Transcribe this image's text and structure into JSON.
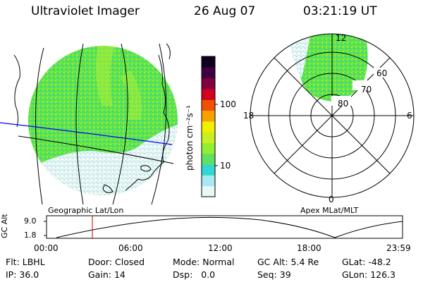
{
  "header": {
    "instrument": "Ultraviolet Imager",
    "date": "26 Aug 07",
    "time": "03:21:19 UT"
  },
  "left_panel": {
    "caption": "Geographic Lat/Lon"
  },
  "colorbar": {
    "unit_label": "photon cm⁻²s⁻¹",
    "ticks": [
      "100",
      "10"
    ],
    "colors": [
      "#e8f8f8",
      "#a8e8f0",
      "#30d8d0",
      "#60e060",
      "#90f030",
      "#c8f020",
      "#f0f000",
      "#f8a000",
      "#f05000",
      "#d00020",
      "#800040",
      "#400040",
      "#100020"
    ]
  },
  "right_panel": {
    "caption": "Apex MLat/MLT",
    "mlt_labels": {
      "top": "12",
      "left": "18",
      "right": "6",
      "bottom": "0"
    },
    "lat_labels": [
      "60",
      "70",
      "80"
    ]
  },
  "altitude_strip": {
    "ylabel": "GC Alt",
    "ymax_label": "9.0",
    "ymin_label": "1.8",
    "time_ticks": [
      "00:00",
      "06:00",
      "12:00",
      "18:00",
      "23:59"
    ],
    "marker_color": "#c00000"
  },
  "status": {
    "row1": [
      {
        "key": "Flt:",
        "value": "LBHL"
      },
      {
        "key": "Door:",
        "value": "Closed"
      },
      {
        "key": "Mode:",
        "value": "Normal"
      },
      {
        "key": "GC Alt:",
        "value": "5.4 Re"
      },
      {
        "key": "GLat:",
        "value": "-48.2"
      }
    ],
    "row2": [
      {
        "key": "IP:",
        "value": "36.0"
      },
      {
        "key": "Gain:",
        "value": "14"
      },
      {
        "key": "Dsp:",
        "value": "0.0"
      },
      {
        "key": "Seq:",
        "value": "39"
      },
      {
        "key": "GLon:",
        "value": "126.3"
      }
    ]
  }
}
